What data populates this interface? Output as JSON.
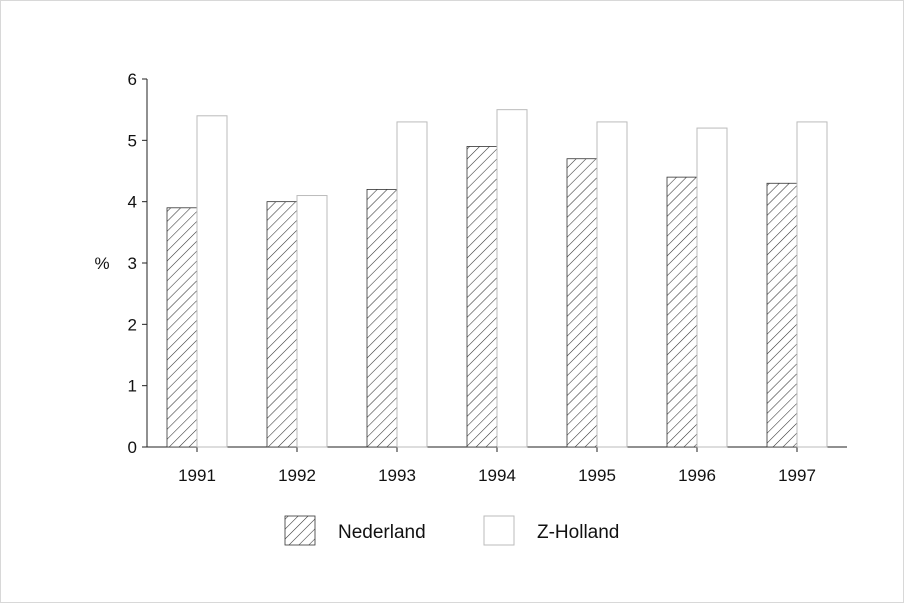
{
  "chart_data": {
    "type": "bar",
    "title": "",
    "xlabel": "",
    "ylabel": "%",
    "ylim": [
      0,
      6
    ],
    "yticks": [
      0,
      1,
      2,
      3,
      4,
      5,
      6
    ],
    "grid": false,
    "legend_position": "bottom",
    "categories": [
      "1991",
      "1992",
      "1993",
      "1994",
      "1995",
      "1996",
      "1997"
    ],
    "series": [
      {
        "name": "Nederland",
        "values": [
          3.9,
          4.0,
          4.2,
          4.9,
          4.7,
          4.4,
          4.3
        ],
        "fill": "hatched"
      },
      {
        "name": "Z-Holland",
        "values": [
          5.4,
          4.1,
          5.3,
          5.5,
          5.3,
          5.2,
          5.3
        ],
        "fill": "white"
      }
    ]
  }
}
